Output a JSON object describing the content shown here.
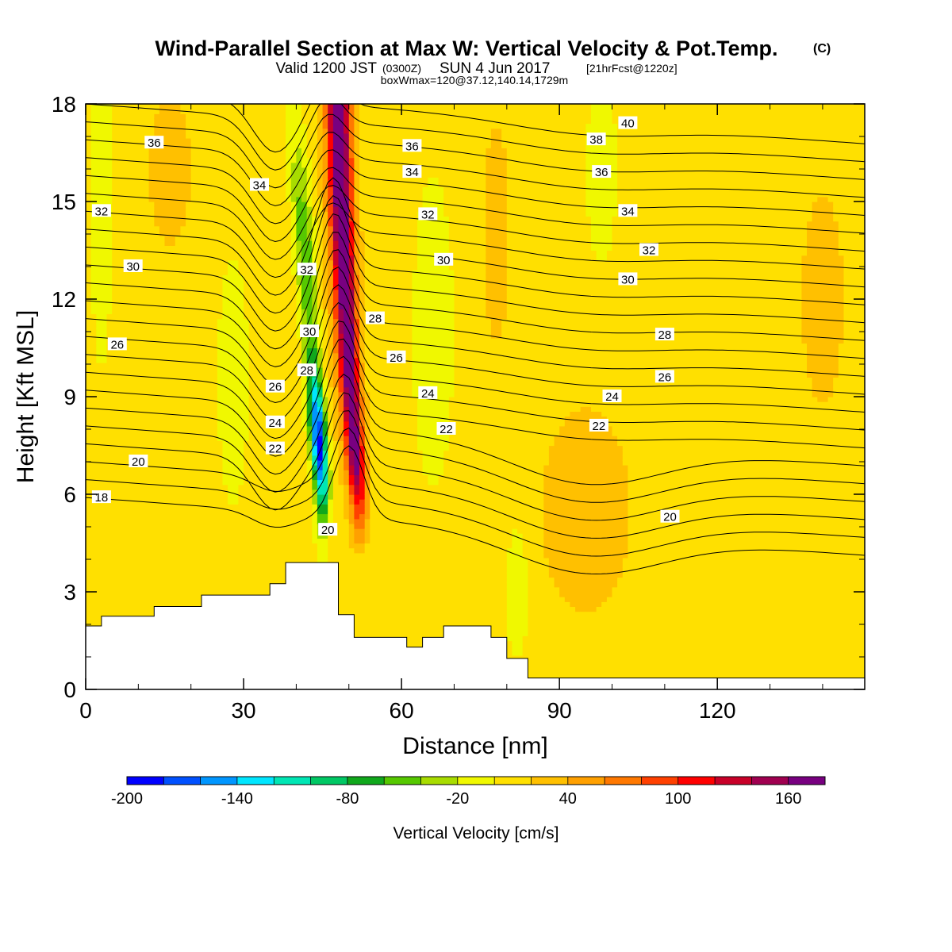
{
  "header": {
    "title": "Wind-Parallel Section at Max W: Vertical Velocity & Pot.Temp.",
    "title_mark": "(C)",
    "valid_line": "Valid 1200 JST",
    "valid_utc": "(0300Z)",
    "valid_date": "SUN 4 Jun 2017",
    "valid_fcst": "[21hrFcst@1220z]",
    "box_line": "boxWmax=120@37.12,140.14,1729m"
  },
  "chart_data": {
    "type": "heatmap",
    "xlabel": "Distance [nm]",
    "ylabel": "Height [Kft MSL]",
    "xlim": [
      0,
      148
    ],
    "ylim": [
      0,
      18
    ],
    "x_ticks": [
      "0",
      "30",
      "60",
      "90",
      "120"
    ],
    "y_ticks": [
      "0",
      "3",
      "6",
      "9",
      "12",
      "15",
      "18"
    ],
    "x_tick_values": [
      0,
      30,
      60,
      90,
      120
    ],
    "y_tick_values": [
      0,
      3,
      6,
      9,
      12,
      15,
      18
    ],
    "colorbar": {
      "label": "Vertical Velocity [cm/s]",
      "levels": [
        -200,
        -180,
        -160,
        -140,
        -120,
        -100,
        -80,
        -60,
        -40,
        -20,
        0,
        20,
        40,
        60,
        80,
        100,
        120,
        140,
        160,
        180
      ],
      "tick_labels": [
        "-200",
        "-140",
        "-80",
        "-20",
        "40",
        "100",
        "160"
      ],
      "tick_values": [
        -200,
        -140,
        -80,
        -20,
        40,
        100,
        160
      ],
      "colors": [
        "#0000ff",
        "#0050ff",
        "#0096ff",
        "#00e6ff",
        "#00e6b4",
        "#00c864",
        "#10a81c",
        "#56c800",
        "#a8dc00",
        "#f0f800",
        "#ffe000",
        "#ffc000",
        "#ffa000",
        "#ff7800",
        "#ff4000",
        "#ff0000",
        "#c80028",
        "#a00050",
        "#780080"
      ]
    },
    "terrain_kft": [
      [
        0,
        1.95
      ],
      [
        3,
        1.95
      ],
      [
        3,
        2.25
      ],
      [
        13,
        2.25
      ],
      [
        13,
        2.55
      ],
      [
        22,
        2.55
      ],
      [
        22,
        2.9
      ],
      [
        35,
        2.9
      ],
      [
        35,
        3.25
      ],
      [
        38,
        3.25
      ],
      [
        38,
        3.9
      ],
      [
        48,
        3.9
      ],
      [
        48,
        2.3
      ],
      [
        51,
        2.3
      ],
      [
        51,
        1.6
      ],
      [
        61,
        1.6
      ],
      [
        61,
        1.3
      ],
      [
        64,
        1.3
      ],
      [
        64,
        1.6
      ],
      [
        68,
        1.6
      ],
      [
        68,
        1.95
      ],
      [
        77,
        1.95
      ],
      [
        77,
        1.6
      ],
      [
        80,
        1.6
      ],
      [
        80,
        0.95
      ],
      [
        84,
        0.95
      ],
      [
        84,
        0.35
      ],
      [
        148,
        0.35
      ]
    ],
    "w_features": [
      {
        "x": 3,
        "y": 15.2,
        "sx": 2,
        "sy": 5,
        "w": -30
      },
      {
        "x": 28,
        "y": 9.5,
        "sx": 3,
        "sy": 4,
        "w": -25
      },
      {
        "x": 48,
        "y": 13.5,
        "sx": 3.5,
        "sy": 7,
        "w": 20
      },
      {
        "x": 66,
        "y": 11,
        "sx": 4,
        "sy": 5,
        "w": -25
      },
      {
        "x": 78,
        "y": 14,
        "sx": 3,
        "sy": 4,
        "w": 20
      },
      {
        "x": 82,
        "y": 3,
        "sx": 2,
        "sy": 2,
        "w": -30
      },
      {
        "x": 98,
        "y": 16,
        "sx": 3,
        "sy": 3,
        "w": -25
      },
      {
        "x": 95,
        "y": 5.5,
        "sx": 8,
        "sy": 3,
        "w": 30
      },
      {
        "x": 16,
        "y": 16,
        "sx": 5,
        "sy": 3,
        "w": 18
      },
      {
        "x": 140,
        "y": 12,
        "sx": 6,
        "sy": 5,
        "w": 15
      }
    ],
    "w_updraft_axis": [
      [
        52,
        5.5
      ],
      [
        50,
        10
      ],
      [
        48.5,
        15
      ],
      [
        48,
        18
      ]
    ],
    "w_downdraft_axis": [
      [
        45,
        6
      ],
      [
        43,
        10.5
      ],
      [
        41,
        15
      ],
      [
        39.5,
        18
      ]
    ],
    "w_updraft_max": 180,
    "w_downdraft_min": -195,
    "theta_levels": [
      18,
      19,
      20,
      21,
      22,
      23,
      24,
      25,
      26,
      27,
      28,
      29,
      30,
      31,
      32,
      33,
      34,
      35,
      36,
      37,
      38,
      39,
      40,
      41
    ],
    "theta_contour_labels": [
      {
        "text": "18",
        "x": 3,
        "y": 5.9
      },
      {
        "text": "20",
        "x": 10,
        "y": 7.0
      },
      {
        "text": "20",
        "x": 46,
        "y": 4.9
      },
      {
        "text": "20",
        "x": 111,
        "y": 5.3
      },
      {
        "text": "22",
        "x": 36,
        "y": 7.4
      },
      {
        "text": "22",
        "x": 68.5,
        "y": 8.0
      },
      {
        "text": "22",
        "x": 97.5,
        "y": 8.1
      },
      {
        "text": "24",
        "x": 36,
        "y": 8.2
      },
      {
        "text": "24",
        "x": 65,
        "y": 9.1
      },
      {
        "text": "24",
        "x": 100,
        "y": 9.0
      },
      {
        "text": "26",
        "x": 6,
        "y": 10.6
      },
      {
        "text": "26",
        "x": 36,
        "y": 9.3
      },
      {
        "text": "26",
        "x": 59,
        "y": 10.2
      },
      {
        "text": "26",
        "x": 110,
        "y": 9.6
      },
      {
        "text": "28",
        "x": 42,
        "y": 9.8
      },
      {
        "text": "28",
        "x": 55,
        "y": 11.4
      },
      {
        "text": "28",
        "x": 110,
        "y": 10.9
      },
      {
        "text": "30",
        "x": 9,
        "y": 13.0
      },
      {
        "text": "30",
        "x": 42.5,
        "y": 11.0
      },
      {
        "text": "30",
        "x": 68,
        "y": 13.2
      },
      {
        "text": "30",
        "x": 103,
        "y": 12.6
      },
      {
        "text": "32",
        "x": 3,
        "y": 14.7
      },
      {
        "text": "32",
        "x": 42,
        "y": 12.9
      },
      {
        "text": "32",
        "x": 65,
        "y": 14.6
      },
      {
        "text": "32",
        "x": 107,
        "y": 13.5
      },
      {
        "text": "34",
        "x": 33,
        "y": 15.5
      },
      {
        "text": "34",
        "x": 62,
        "y": 15.9
      },
      {
        "text": "34",
        "x": 103,
        "y": 14.7
      },
      {
        "text": "36",
        "x": 13,
        "y": 16.8
      },
      {
        "text": "36",
        "x": 62,
        "y": 16.7
      },
      {
        "text": "36",
        "x": 98,
        "y": 15.9
      },
      {
        "text": "38",
        "x": 97,
        "y": 16.9
      },
      {
        "text": "40",
        "x": 103,
        "y": 17.4
      }
    ]
  }
}
